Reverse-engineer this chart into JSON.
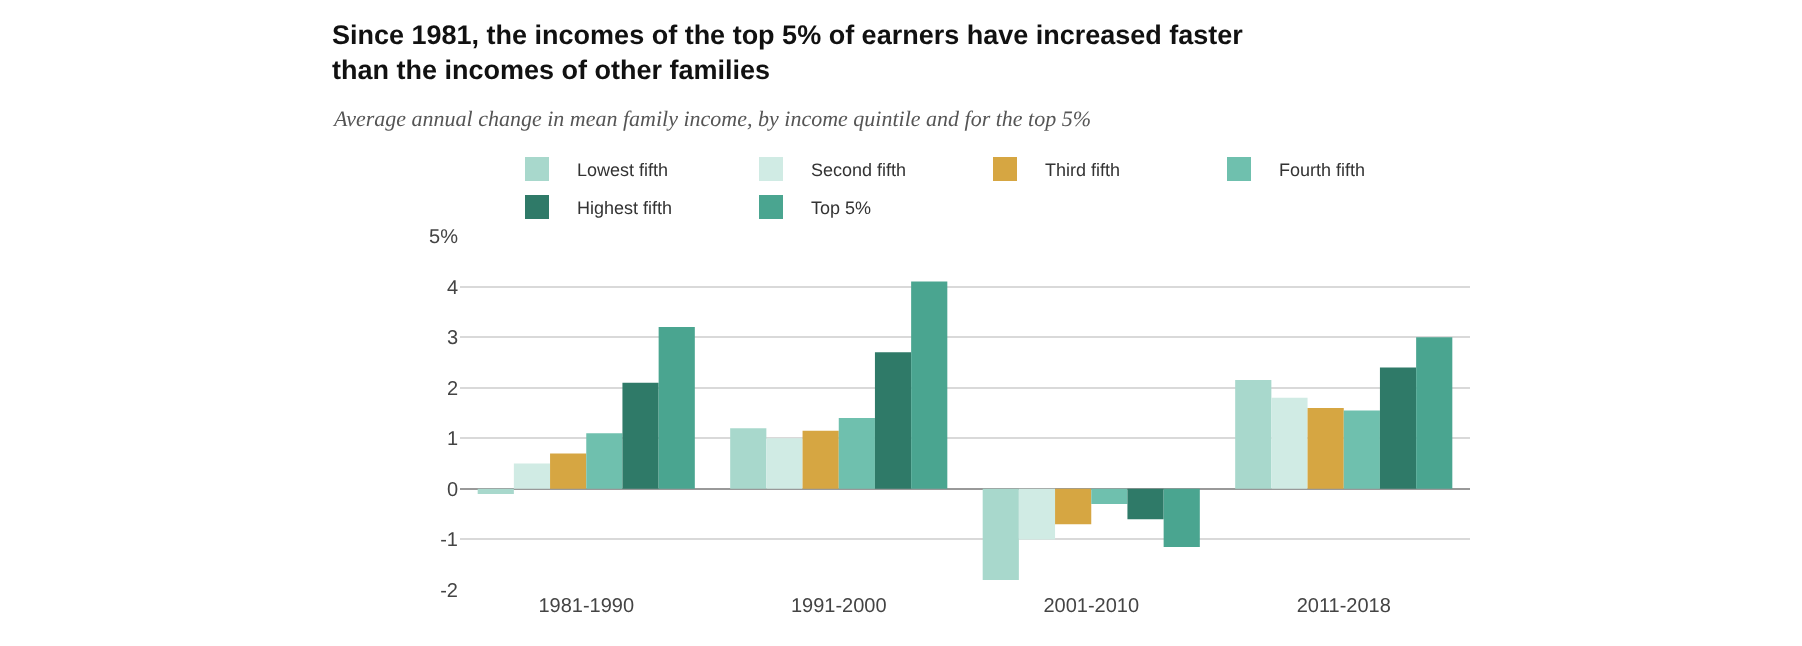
{
  "chart_data": {
    "type": "bar",
    "title": "Since 1981, the incomes of the top 5% of earners have increased faster than the incomes of other families",
    "subtitle": "Average annual change in mean family income, by income quintile and for the top 5%",
    "categories": [
      "1981-1990",
      "1991-2000",
      "2001-2010",
      "2011-2018"
    ],
    "series": [
      {
        "name": "Lowest fifth",
        "color": "#a8d8cc",
        "values": [
          -0.1,
          1.2,
          -1.8,
          2.15
        ]
      },
      {
        "name": "Second fifth",
        "color": "#d0ebe4",
        "values": [
          0.5,
          1.0,
          -1.0,
          1.8
        ]
      },
      {
        "name": "Third fifth",
        "color": "#d6a642",
        "values": [
          0.7,
          1.15,
          -0.7,
          1.6
        ]
      },
      {
        "name": "Fourth fifth",
        "color": "#6fc0ae",
        "values": [
          1.1,
          1.4,
          -0.3,
          1.55
        ]
      },
      {
        "name": "Highest fifth",
        "color": "#2f7a68",
        "values": [
          2.1,
          2.7,
          -0.6,
          2.4
        ]
      },
      {
        "name": "Top 5%",
        "color": "#4aa590",
        "values": [
          3.2,
          4.1,
          -1.15,
          3.0
        ]
      }
    ],
    "ylim": [
      -2,
      5
    ],
    "yticks": [
      -2,
      -1,
      0,
      1,
      2,
      3,
      4,
      {
        "value": 5,
        "label": "5%"
      }
    ],
    "grid": "y",
    "legend": "top"
  }
}
